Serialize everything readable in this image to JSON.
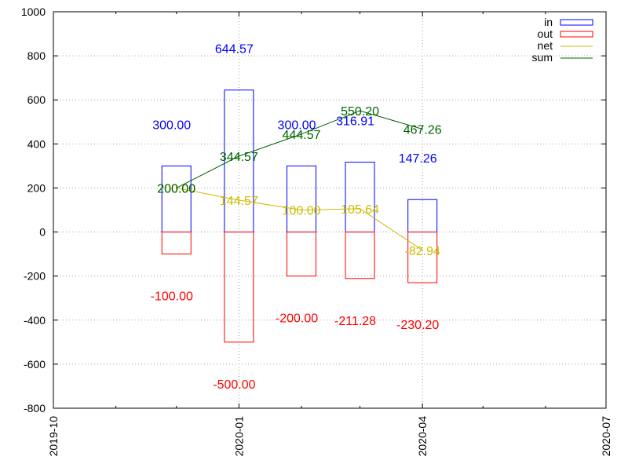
{
  "chart_data": {
    "type": "bar",
    "title": "",
    "xlabel": "",
    "ylabel": "",
    "ylim": [
      -800,
      1000
    ],
    "yticks": [
      -800,
      -600,
      -400,
      -200,
      0,
      200,
      400,
      600,
      800,
      1000
    ],
    "xlim": [
      "2019-10-01",
      "2020-07-01"
    ],
    "xtick_labels": [
      "2019-10",
      "2020-01",
      "2020-04",
      "2020-07"
    ],
    "grid": true,
    "legend_position": "top-right",
    "dates": [
      "2019-12-01",
      "2020-01-01",
      "2020-02-01",
      "2020-03-01",
      "2020-04-01"
    ],
    "series": [
      {
        "name": "in",
        "kind": "bar",
        "color": "#0000ff",
        "values": [
          300.0,
          644.57,
          300.0,
          316.91,
          147.26
        ],
        "labels": [
          "300.00",
          "644.57",
          "300.00",
          "316.91",
          "147.26"
        ]
      },
      {
        "name": "out",
        "kind": "bar",
        "color": "#ff0000",
        "values": [
          -100.0,
          -500.0,
          -200.0,
          -211.28,
          -230.2
        ],
        "labels": [
          "-100.00",
          "-500.00",
          "-200.00",
          "-211.28",
          "-230.20"
        ]
      },
      {
        "name": "net",
        "kind": "line",
        "color": "#ccbb00",
        "values": [
          200.0,
          144.57,
          100.0,
          105.64,
          -82.94
        ],
        "labels": [
          "200.00",
          "144.57",
          "100.00",
          "105.64",
          "-82.94"
        ]
      },
      {
        "name": "sum",
        "kind": "line",
        "color": "#006400",
        "values": [
          200.0,
          344.57,
          444.57,
          550.2,
          467.26
        ],
        "labels": [
          "200.00",
          "344.57",
          "444.57",
          "550.20",
          "467.26"
        ]
      }
    ]
  }
}
